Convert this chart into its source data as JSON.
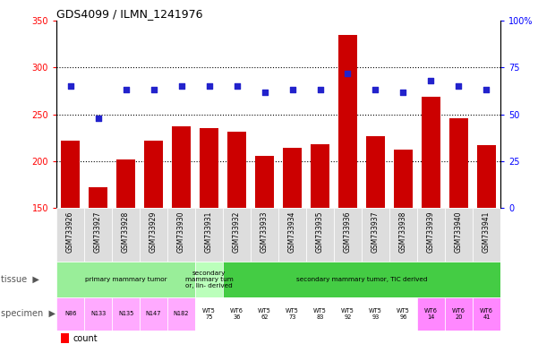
{
  "title": "GDS4099 / ILMN_1241976",
  "samples": [
    "GSM733926",
    "GSM733927",
    "GSM733928",
    "GSM733929",
    "GSM733930",
    "GSM733931",
    "GSM733932",
    "GSM733933",
    "GSM733934",
    "GSM733935",
    "GSM733936",
    "GSM733937",
    "GSM733938",
    "GSM733939",
    "GSM733940",
    "GSM733941"
  ],
  "counts": [
    222,
    172,
    202,
    222,
    237,
    235,
    232,
    206,
    214,
    218,
    335,
    227,
    212,
    269,
    246,
    217
  ],
  "percentiles": [
    65,
    48,
    63,
    63,
    65,
    65,
    65,
    62,
    63,
    63,
    72,
    63,
    62,
    68,
    65,
    63
  ],
  "bar_color": "#cc0000",
  "dot_color": "#2222cc",
  "ylim_left": [
    150,
    350
  ],
  "ylim_right": [
    0,
    100
  ],
  "yticks_left": [
    150,
    200,
    250,
    300,
    350
  ],
  "yticks_right": [
    0,
    25,
    50,
    75,
    100
  ],
  "ytick_labels_right": [
    "0",
    "25",
    "50",
    "75",
    "100%"
  ],
  "grid_values": [
    200,
    250,
    300
  ],
  "tissue_spans": [
    [
      0,
      4,
      "primary mammary tumor",
      "#99ee99"
    ],
    [
      5,
      5,
      "secondary\nmammary tum\nor, lin- derived",
      "#bbffbb"
    ],
    [
      6,
      15,
      "secondary mammary tumor, TIC derived",
      "#44cc44"
    ]
  ],
  "specimen_labels": [
    "N86",
    "N133",
    "N135",
    "N147",
    "N182",
    "WT5\n75",
    "WT6\n36",
    "WT5\n62",
    "WT5\n73",
    "WT5\n83",
    "WT5\n92",
    "WT5\n93",
    "WT5\n96",
    "WT6\n14",
    "WT6\n20",
    "WT6\n41"
  ],
  "specimen_colors": [
    "#ffaaff",
    "#ffaaff",
    "#ffaaff",
    "#ffaaff",
    "#ffaaff",
    "#ffffff",
    "#ffffff",
    "#ffffff",
    "#ffffff",
    "#ffffff",
    "#ffffff",
    "#ffffff",
    "#ffffff",
    "#ff88ff",
    "#ff88ff",
    "#ff88ff"
  ]
}
